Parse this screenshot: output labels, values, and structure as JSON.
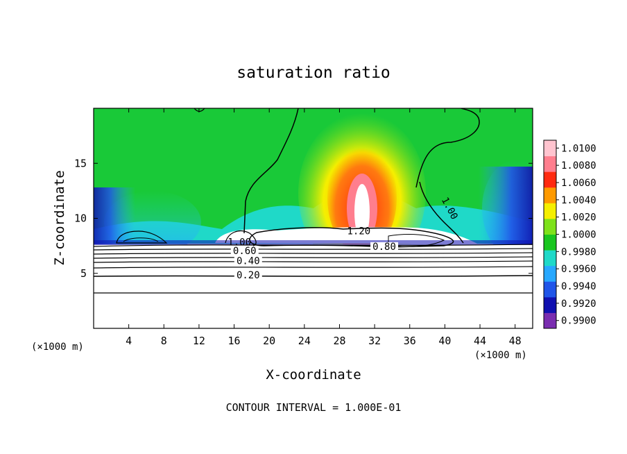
{
  "chart_data": {
    "type": "heatmap",
    "title": "saturation ratio",
    "xlabel": "X-coordinate",
    "ylabel": "Z-coordinate",
    "x_unit_left": "(×1000 m)",
    "x_unit_right": "(×1000 m)",
    "xlim": [
      0,
      50
    ],
    "ylim": [
      0,
      20
    ],
    "x_ticks": [
      4,
      8,
      12,
      16,
      20,
      24,
      28,
      32,
      36,
      40,
      44,
      48
    ],
    "y_ticks": [
      5,
      10,
      15
    ],
    "footer": "CONTOUR INTERVAL = 1.000E-01",
    "colorbar": {
      "levels": [
        "0.9900",
        "0.9920",
        "0.9940",
        "0.9960",
        "0.9980",
        "1.0000",
        "1.0020",
        "1.0040",
        "1.0060",
        "1.0080",
        "1.0100"
      ],
      "colors": [
        "#7a2db0",
        "#1010b0",
        "#2055e8",
        "#27a8ff",
        "#1fd9c8",
        "#19c61f",
        "#7ee21a",
        "#f5ef00",
        "#ff9a00",
        "#ff2a10",
        "#ff7e8e",
        "#ffc4cf"
      ]
    },
    "contour_labels": [
      {
        "text": "1.20",
        "x": 30.2,
        "z": 8.6
      },
      {
        "text": "1.00",
        "x": 40.3,
        "z": 10.8
      },
      {
        "text": "0.80",
        "x": 33.1,
        "z": 7.2
      },
      {
        "text": "1.00",
        "x": 16.6,
        "z": 7.6
      },
      {
        "text": "0.60",
        "x": 17.2,
        "z": 6.8
      },
      {
        "text": "0.40",
        "x": 17.6,
        "z": 5.9
      },
      {
        "text": "0.20",
        "x": 17.6,
        "z": 4.6
      }
    ]
  }
}
